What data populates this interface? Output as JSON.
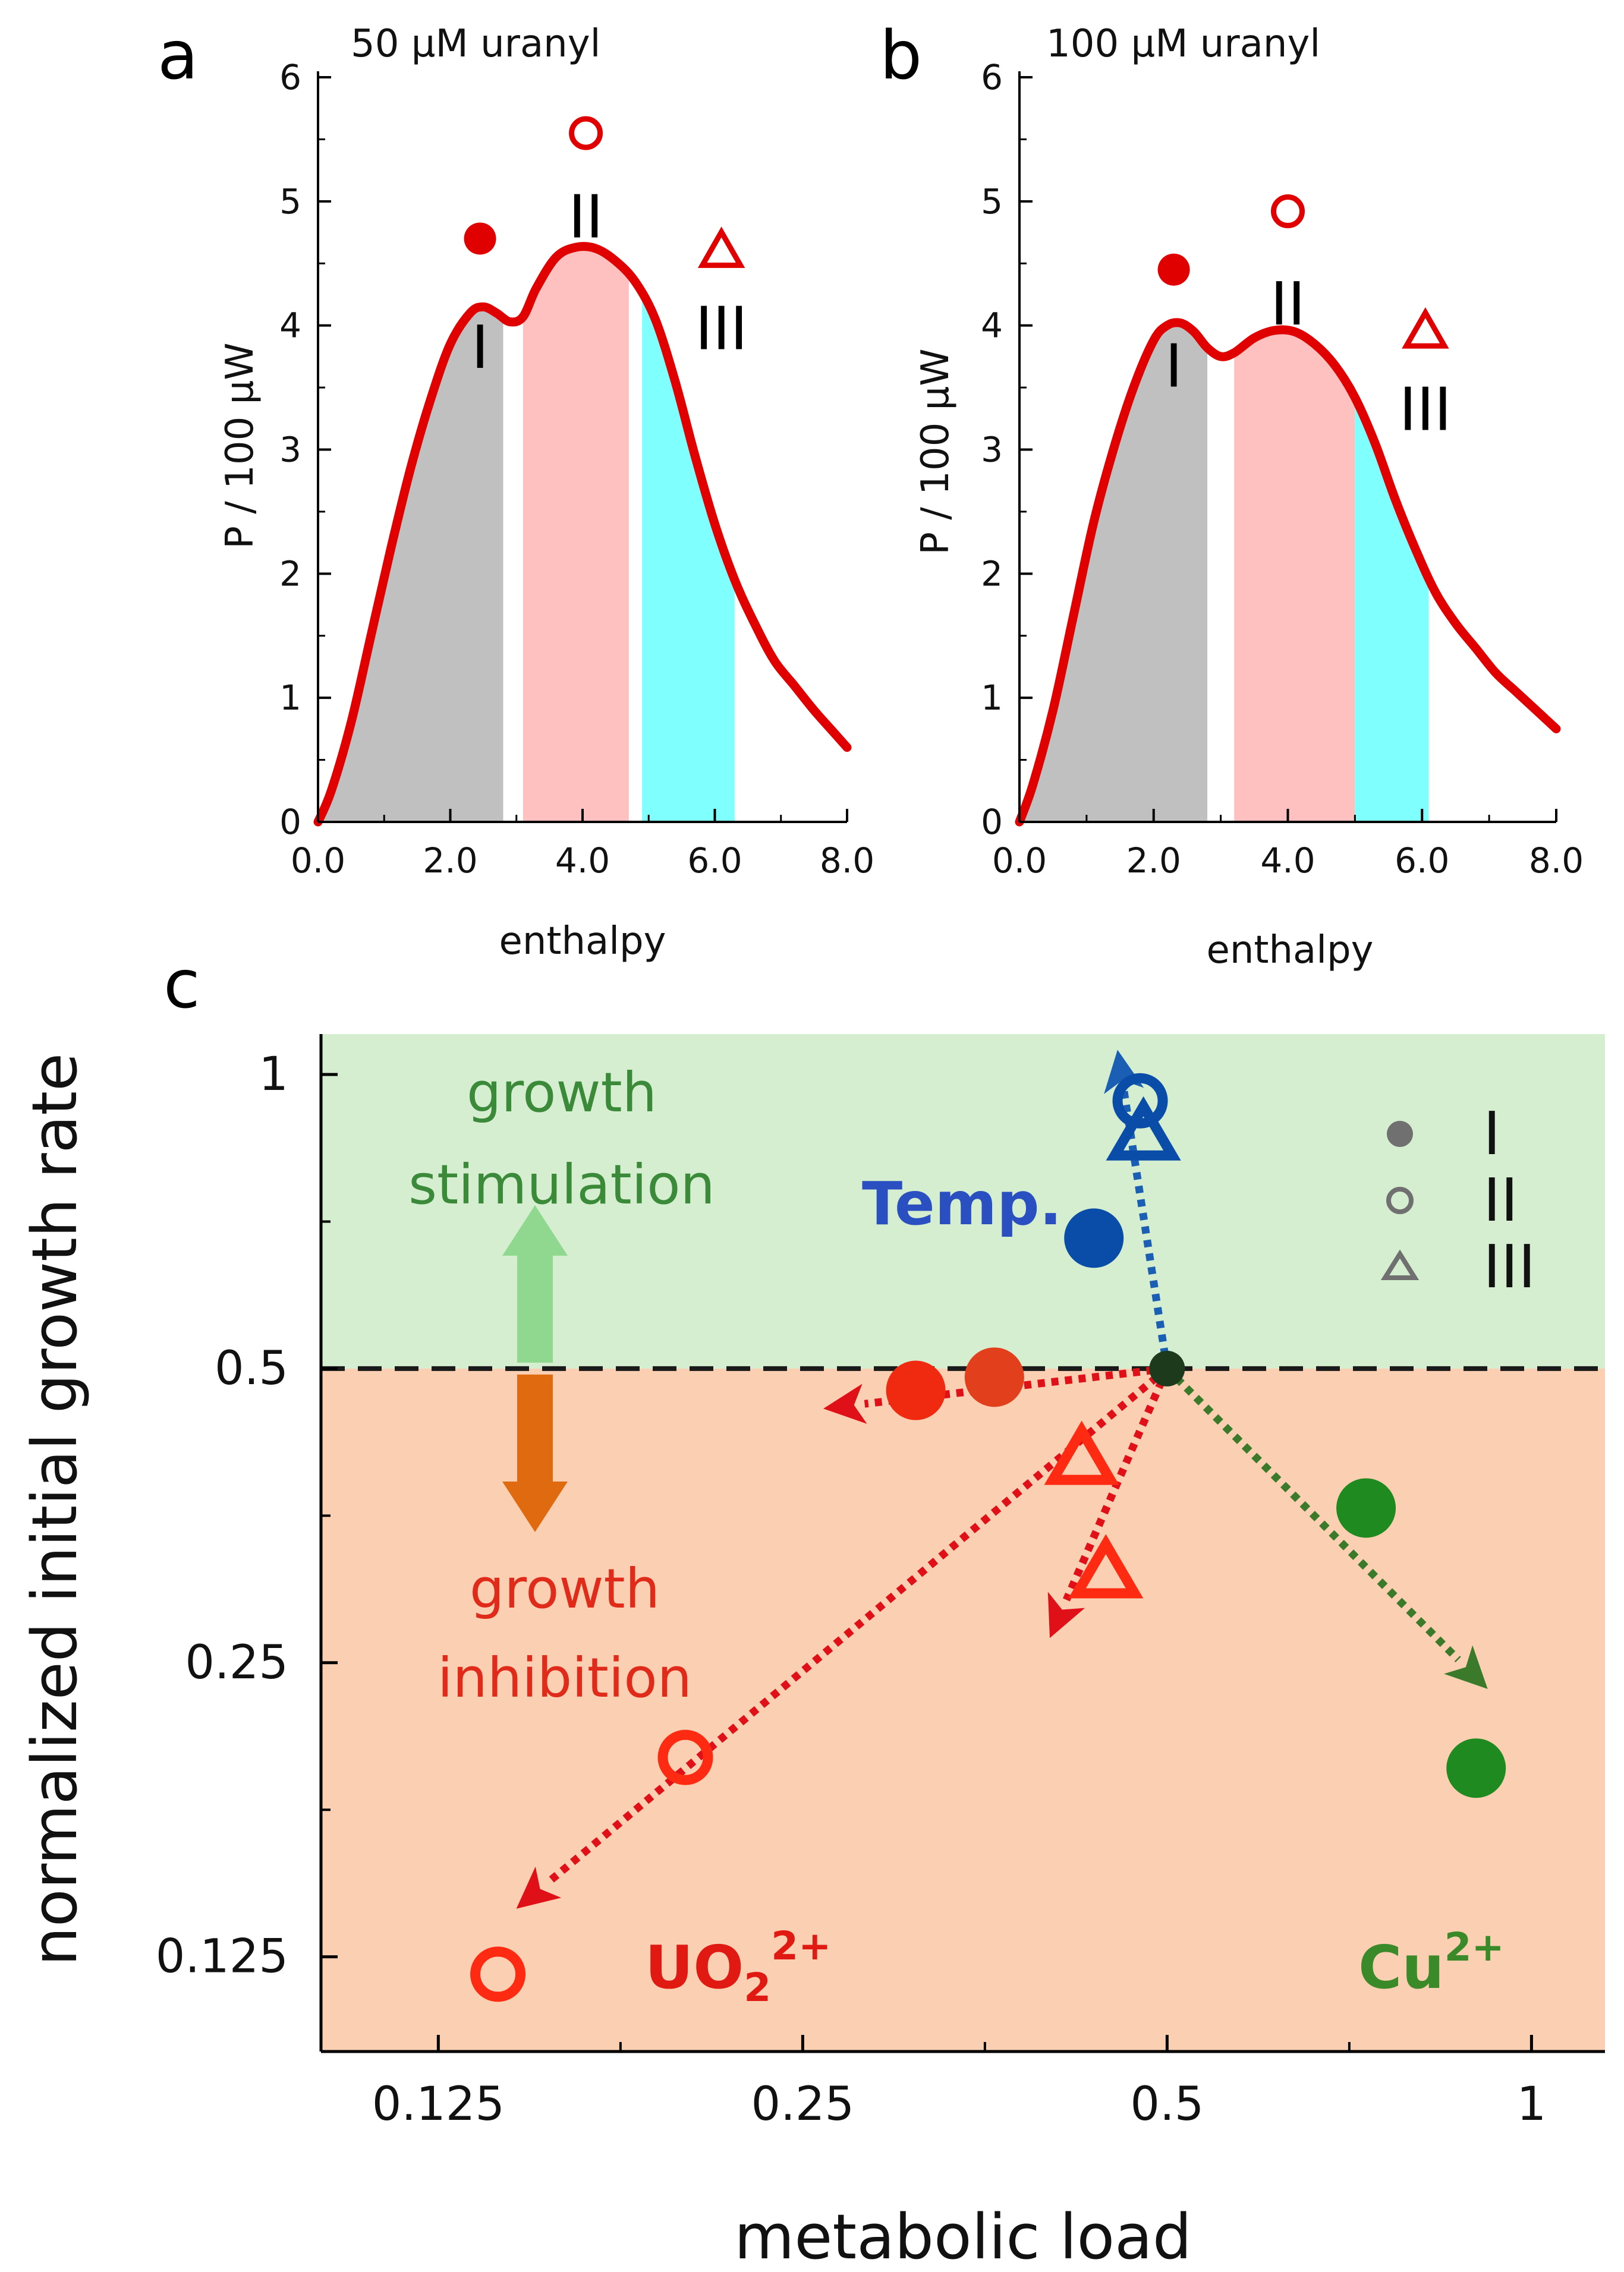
{
  "chart_data": [
    {
      "panel": "a",
      "type": "area",
      "title": "50 µM uranyl",
      "xlabel": "enthalpy",
      "ylabel": "P / 100 µW",
      "xlim": [
        0,
        8
      ],
      "ylim": [
        0,
        6
      ],
      "xticks": [
        "0.0",
        "2.0",
        "4.0",
        "6.0",
        "8.0"
      ],
      "yticks": [
        "0",
        "1",
        "2",
        "3",
        "4",
        "5",
        "6"
      ],
      "curve": {
        "x": [
          0,
          0.2,
          0.5,
          0.8,
          1.1,
          1.4,
          1.7,
          2.0,
          2.3,
          2.5,
          2.7,
          2.9,
          3.1,
          3.3,
          3.6,
          3.9,
          4.2,
          4.5,
          4.8,
          5.1,
          5.4,
          5.7,
          6.0,
          6.3,
          6.6,
          6.9,
          7.2,
          7.5,
          7.8,
          8.0
        ],
        "y": [
          0,
          0.25,
          0.8,
          1.5,
          2.2,
          2.85,
          3.4,
          3.85,
          4.1,
          4.15,
          4.1,
          4.03,
          4.07,
          4.3,
          4.55,
          4.63,
          4.62,
          4.52,
          4.35,
          4.05,
          3.55,
          2.95,
          2.4,
          1.95,
          1.6,
          1.3,
          1.1,
          0.9,
          0.72,
          0.6
        ]
      },
      "regions": [
        {
          "label": "I",
          "from": 0.0,
          "to": 2.8,
          "color": "#c0c0c0"
        },
        {
          "label": "II",
          "from": 3.1,
          "to": 4.7,
          "color": "#ffc0c0"
        },
        {
          "label": "III",
          "from": 4.9,
          "to": 6.3,
          "color": "#80ffff"
        }
      ],
      "markers": [
        {
          "label": "I",
          "marker": "filled-circle",
          "x": 2.45,
          "y": 4.7,
          "label_y": 3.85
        },
        {
          "label": "II",
          "marker": "open-circle",
          "x": 4.05,
          "y": 5.55,
          "label_y": 4.9
        },
        {
          "label": "III",
          "marker": "open-triangle",
          "x": 6.1,
          "y": 4.6,
          "label_y": 4.0
        }
      ]
    },
    {
      "panel": "b",
      "type": "area",
      "title": "100 µM uranyl",
      "xlabel": "enthalpy",
      "ylabel": "P / 100 µW",
      "xlim": [
        0,
        8
      ],
      "ylim": [
        0,
        6
      ],
      "xticks": [
        "0.0",
        "2.0",
        "4.0",
        "6.0",
        "8.0"
      ],
      "yticks": [
        "0",
        "1",
        "2",
        "3",
        "4",
        "5",
        "6"
      ],
      "curve": {
        "x": [
          0,
          0.2,
          0.5,
          0.8,
          1.1,
          1.4,
          1.7,
          2.0,
          2.2,
          2.4,
          2.6,
          2.8,
          3.0,
          3.2,
          3.5,
          3.8,
          4.1,
          4.4,
          4.7,
          5.0,
          5.3,
          5.6,
          5.9,
          6.2,
          6.5,
          6.8,
          7.1,
          7.4,
          7.7,
          8.0
        ],
        "y": [
          0,
          0.3,
          0.9,
          1.65,
          2.4,
          3.0,
          3.5,
          3.88,
          4.0,
          4.02,
          3.95,
          3.82,
          3.75,
          3.78,
          3.9,
          3.96,
          3.95,
          3.85,
          3.68,
          3.42,
          3.05,
          2.6,
          2.2,
          1.85,
          1.6,
          1.4,
          1.2,
          1.05,
          0.9,
          0.75
        ]
      },
      "regions": [
        {
          "label": "I",
          "from": 0.0,
          "to": 2.8,
          "color": "#c0c0c0"
        },
        {
          "label": "II",
          "from": 3.2,
          "to": 5.0,
          "color": "#ffc0c0"
        },
        {
          "label": "III",
          "from": 5.0,
          "to": 6.1,
          "color": "#80ffff"
        }
      ],
      "markers": [
        {
          "label": "I",
          "marker": "filled-circle",
          "x": 2.3,
          "y": 4.45,
          "label_y": 3.7
        },
        {
          "label": "II",
          "marker": "open-circle",
          "x": 4.0,
          "y": 4.92,
          "label_y": 4.2
        },
        {
          "label": "III",
          "marker": "open-triangle",
          "x": 6.05,
          "y": 3.95,
          "label_y": 3.35
        }
      ]
    },
    {
      "panel": "c",
      "type": "scatter",
      "xscale": "log2",
      "yscale": "log2",
      "xlabel": "metabolic load",
      "ylabel": "normalized initial growth rate",
      "xlim": [
        0.1,
        1.15
      ],
      "ylim": [
        0.1,
        1.1
      ],
      "xticks": [
        {
          "value": 0.125,
          "label": "0.125"
        },
        {
          "value": 0.25,
          "label": "0.25"
        },
        {
          "value": 0.5,
          "label": "0.5"
        },
        {
          "value": 1,
          "label": "1"
        }
      ],
      "yticks": [
        {
          "value": 0.125,
          "label": "0.125"
        },
        {
          "value": 0.25,
          "label": "0.25"
        },
        {
          "value": 0.5,
          "label": "0.5"
        },
        {
          "value": 1,
          "label": "1"
        }
      ],
      "reference_line": 0.5,
      "zones": [
        {
          "name": "growth stimulation",
          "from": 0.5,
          "to": 1.1,
          "color": "#d5eed0",
          "text_color": "#3a8a3a",
          "line1": "growth",
          "line2": "stimulation"
        },
        {
          "name": "growth inhibition",
          "from": 0.1,
          "to": 0.5,
          "color": "#fbd0b2",
          "text_color": "#e02a1a",
          "line1": "growth",
          "line2": "inhibition"
        }
      ],
      "origin": {
        "x": 0.5,
        "y": 0.5,
        "color": "#1d3a1d"
      },
      "points": [
        {
          "group": "Temp.",
          "phase": "I",
          "marker": "filled-circle",
          "x": 0.435,
          "y": 0.68,
          "color": "#0a4da8"
        },
        {
          "group": "Temp.",
          "phase": "II",
          "marker": "open-circle",
          "x": 0.475,
          "y": 0.94,
          "color": "#0a4da8"
        },
        {
          "group": "Temp.",
          "phase": "III",
          "marker": "open-triangle",
          "x": 0.478,
          "y": 0.87,
          "color": "#0a4da8"
        },
        {
          "group": "UO2 2+",
          "phase": "I",
          "marker": "filled-circle",
          "x": 0.31,
          "y": 0.475,
          "color": "#f02a10"
        },
        {
          "group": "UO2 2+",
          "phase": "I",
          "marker": "filled-circle",
          "x": 0.36,
          "y": 0.49,
          "color": "#e2401c"
        },
        {
          "group": "UO2 2+",
          "phase": "II",
          "marker": "open-circle",
          "x": 0.2,
          "y": 0.2,
          "color": "#ff2a12"
        },
        {
          "group": "UO2 2+",
          "phase": "II",
          "marker": "open-circle",
          "x": 0.14,
          "y": 0.12,
          "color": "#ff2a12"
        },
        {
          "group": "UO2 2+",
          "phase": "III",
          "marker": "open-triangle",
          "x": 0.425,
          "y": 0.405,
          "color": "#ff2a12"
        },
        {
          "group": "UO2 2+",
          "phase": "III",
          "marker": "open-triangle",
          "x": 0.445,
          "y": 0.31,
          "color": "#ff2a12"
        },
        {
          "group": "Cu2+",
          "phase": "I",
          "marker": "filled-circle",
          "x": 0.73,
          "y": 0.36,
          "color": "#1f8a1f"
        },
        {
          "group": "Cu2+",
          "phase": "I",
          "marker": "filled-circle",
          "x": 0.9,
          "y": 0.195,
          "color": "#1f8a1f"
        }
      ],
      "arrows": [
        {
          "group": "Temp.",
          "x0": 0.5,
          "y0": 0.5,
          "x1": 0.455,
          "y1": 1.06,
          "color": "#1a5fb4"
        },
        {
          "group": "UO2 2+",
          "x0": 0.5,
          "y0": 0.5,
          "x1": 0.26,
          "y1": 0.455,
          "color": "#e01018"
        },
        {
          "group": "UO2 2+",
          "x0": 0.5,
          "y0": 0.5,
          "x1": 0.145,
          "y1": 0.14,
          "color": "#e01018"
        },
        {
          "group": "UO2 2+",
          "x0": 0.5,
          "y0": 0.5,
          "x1": 0.4,
          "y1": 0.265,
          "color": "#e01018"
        },
        {
          "group": "Cu2+",
          "x0": 0.5,
          "y0": 0.5,
          "x1": 0.92,
          "y1": 0.235,
          "color": "#3a7a2a"
        }
      ],
      "group_labels": [
        {
          "text": "Temp.",
          "color": "#2a4fc0"
        },
        {
          "text": "UO",
          "sub": "2",
          "sup": "2+",
          "color": "#e01a12"
        },
        {
          "text": "Cu",
          "sup": "2+",
          "color": "#3a8a2a"
        }
      ],
      "legend": [
        {
          "marker": "filled-circle",
          "label": "I"
        },
        {
          "marker": "open-circle",
          "label": "II"
        },
        {
          "marker": "open-triangle",
          "label": "III"
        }
      ],
      "legend_position": "top-right",
      "double_arrow": {
        "up_color": "#90d890",
        "down_color": "#e06a10"
      }
    }
  ],
  "panel_letters": [
    "a",
    "b",
    "c"
  ]
}
